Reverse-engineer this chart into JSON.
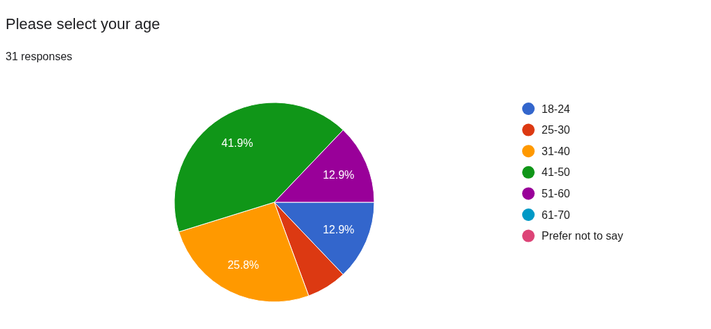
{
  "chart_data": {
    "type": "pie",
    "title": "Please select your age",
    "subtitle": "31 responses",
    "categories": [
      "18-24",
      "25-30",
      "31-40",
      "41-50",
      "51-60",
      "61-70",
      "Prefer not to say"
    ],
    "values": [
      12.9,
      6.5,
      25.8,
      41.9,
      12.9,
      0,
      0
    ],
    "colors": [
      "#3366cc",
      "#dc3912",
      "#ff9900",
      "#109618",
      "#990099",
      "#0099c6",
      "#dd4477"
    ],
    "value_labels": [
      "12.9%",
      null,
      "25.8%",
      "41.9%",
      "12.9%",
      null,
      null
    ],
    "legend": "right"
  }
}
